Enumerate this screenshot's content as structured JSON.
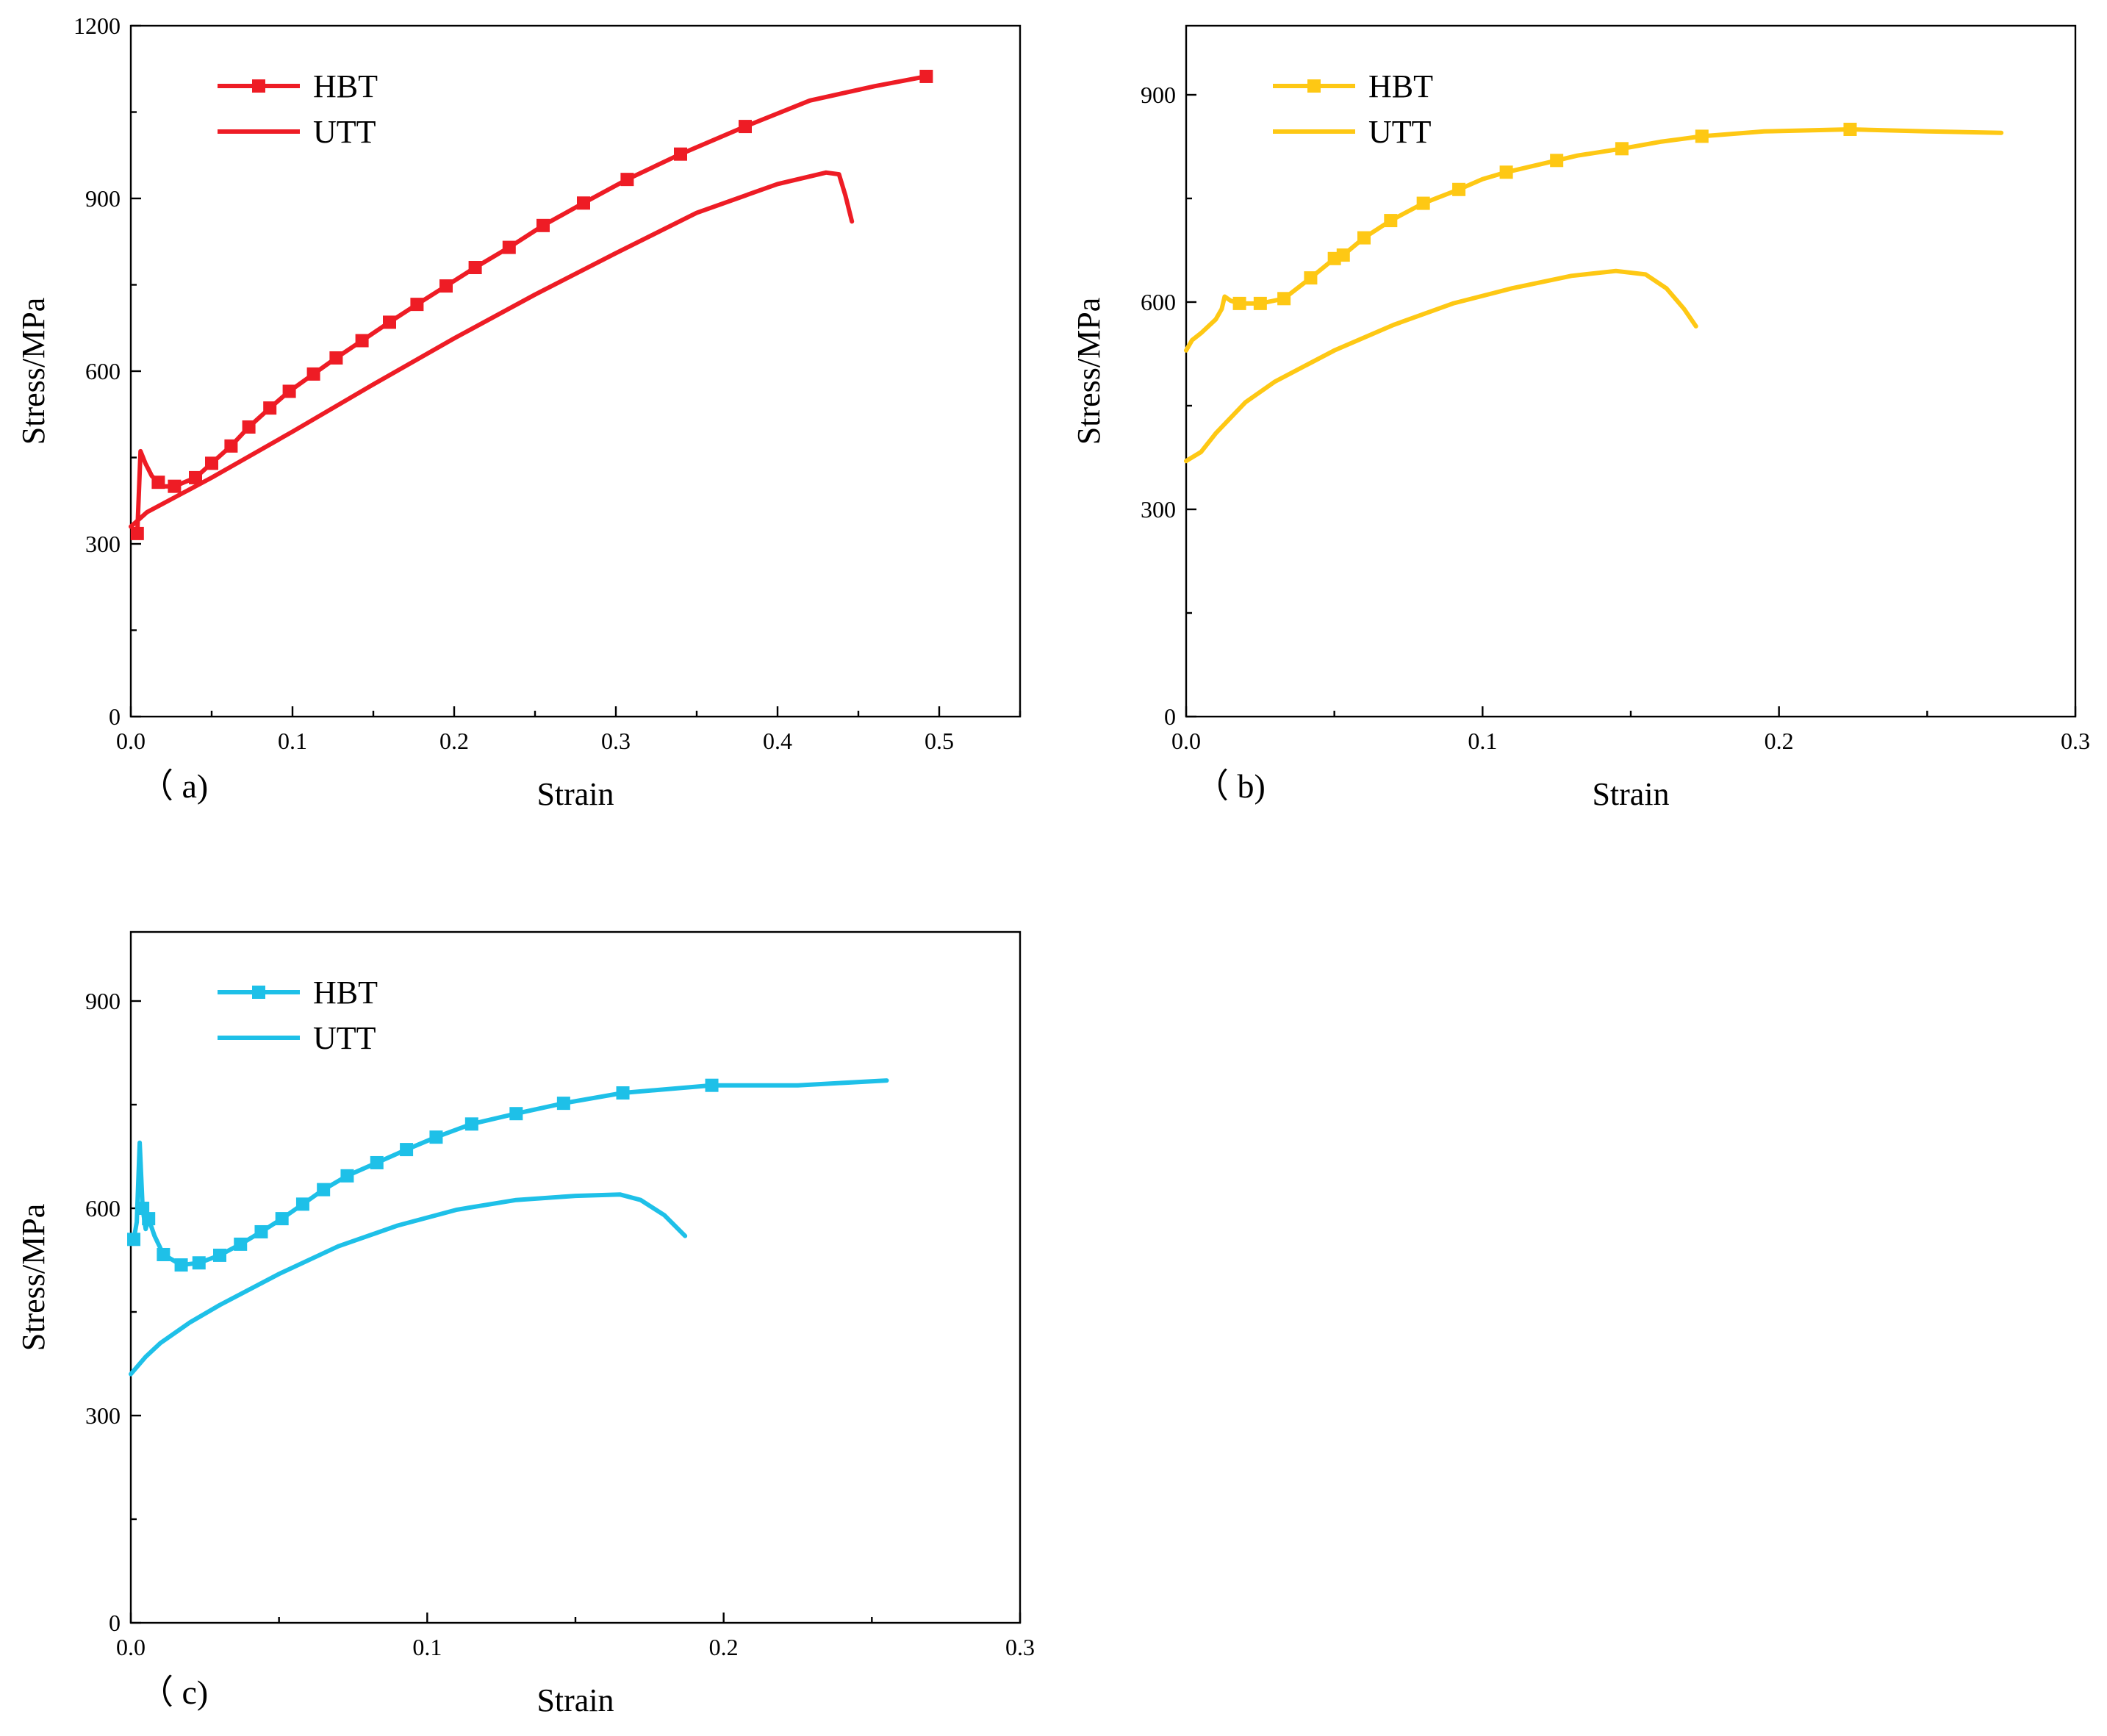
{
  "chart_data": [
    {
      "type": "line",
      "panel_label": "（ a)",
      "xlabel": "Strain",
      "ylabel": "Stress/MPa",
      "xlim": [
        0,
        0.55
      ],
      "ylim": [
        0,
        1200
      ],
      "xticks": [
        0.0,
        0.1,
        0.2,
        0.3,
        0.4,
        0.5
      ],
      "xtick_labels": [
        "0.0",
        "0.1",
        "0.2",
        "0.3",
        "0.4",
        "0.5"
      ],
      "yticks": [
        0,
        300,
        600,
        900,
        1200
      ],
      "ytick_labels": [
        "0",
        "300",
        "600",
        "900",
        "1200"
      ],
      "color": "#ee1c25",
      "legend_position": "top-left",
      "series": [
        {
          "name": "HBT",
          "marker": "square",
          "x": [
            0.004,
            0.006,
            0.009,
            0.013,
            0.017,
            0.02,
            0.027,
            0.04,
            0.05,
            0.062,
            0.073,
            0.086,
            0.098,
            0.113,
            0.127,
            0.143,
            0.16,
            0.177,
            0.195,
            0.213,
            0.234,
            0.255,
            0.28,
            0.307,
            0.34,
            0.38,
            0.42,
            0.46,
            0.492
          ],
          "y": [
            318,
            461,
            440,
            418,
            407,
            400,
            400,
            415,
            440,
            470,
            503,
            536,
            565,
            595,
            623,
            653,
            685,
            716,
            748,
            780,
            815,
            853,
            892,
            933,
            977,
            1025,
            1070,
            1095,
            1112
          ],
          "marker_x": [
            0.004,
            0.017,
            0.027,
            0.04,
            0.05,
            0.062,
            0.073,
            0.086,
            0.098,
            0.113,
            0.127,
            0.143,
            0.16,
            0.177,
            0.195,
            0.213,
            0.234,
            0.255,
            0.28,
            0.307,
            0.34,
            0.38,
            0.492
          ],
          "marker_y": [
            318,
            407,
            400,
            415,
            440,
            470,
            503,
            536,
            565,
            595,
            623,
            653,
            685,
            716,
            748,
            780,
            815,
            853,
            892,
            933,
            977,
            1025,
            1112
          ]
        },
        {
          "name": "UTT",
          "x": [
            0.0,
            0.002,
            0.01,
            0.03,
            0.05,
            0.1,
            0.15,
            0.2,
            0.25,
            0.3,
            0.35,
            0.4,
            0.43,
            0.438,
            0.442,
            0.446
          ],
          "y": [
            330,
            335,
            355,
            385,
            415,
            495,
            577,
            657,
            733,
            805,
            875,
            925,
            945,
            942,
            905,
            860
          ]
        }
      ]
    },
    {
      "type": "line",
      "panel_label": "（ b)",
      "xlabel": "Strain",
      "ylabel": "Stress/MPa",
      "xlim": [
        0,
        0.3
      ],
      "ylim": [
        0,
        1000
      ],
      "xticks": [
        0.0,
        0.1,
        0.2,
        0.3
      ],
      "xtick_labels": [
        "0.0",
        "0.1",
        "0.2",
        "0.3"
      ],
      "yticks": [
        0,
        300,
        600,
        900
      ],
      "ytick_labels": [
        "0",
        "300",
        "600",
        "900"
      ],
      "color": "#fec814",
      "legend_position": "top-left",
      "series": [
        {
          "name": "HBT",
          "marker": "square",
          "x": [
            0.0,
            0.002,
            0.005,
            0.01,
            0.012,
            0.013,
            0.015,
            0.018,
            0.025,
            0.033,
            0.042,
            0.05,
            0.053,
            0.06,
            0.069,
            0.08,
            0.092,
            0.1,
            0.108,
            0.125,
            0.132,
            0.147,
            0.16,
            0.174,
            0.18,
            0.195,
            0.224,
            0.25,
            0.275
          ],
          "y": [
            530,
            545,
            555,
            575,
            590,
            608,
            602,
            598,
            598,
            605,
            635,
            663,
            668,
            693,
            718,
            743,
            763,
            778,
            788,
            805,
            812,
            822,
            832,
            840,
            842,
            847,
            850,
            847,
            845
          ],
          "marker_x": [
            0.018,
            0.025,
            0.033,
            0.042,
            0.05,
            0.053,
            0.06,
            0.069,
            0.08,
            0.092,
            0.108,
            0.125,
            0.147,
            0.174,
            0.224
          ],
          "marker_y": [
            598,
            598,
            605,
            635,
            663,
            668,
            693,
            718,
            743,
            763,
            788,
            805,
            822,
            840,
            850
          ]
        },
        {
          "name": "UTT",
          "x": [
            0.0,
            0.005,
            0.01,
            0.02,
            0.03,
            0.05,
            0.07,
            0.09,
            0.11,
            0.13,
            0.145,
            0.155,
            0.162,
            0.168,
            0.172
          ],
          "y": [
            370,
            383,
            410,
            455,
            485,
            530,
            567,
            598,
            620,
            638,
            645,
            640,
            620,
            590,
            565
          ]
        }
      ]
    },
    {
      "type": "line",
      "panel_label": "（ c)",
      "xlabel": "Strain",
      "ylabel": "Stress/MPa",
      "xlim": [
        0,
        0.3
      ],
      "ylim": [
        0,
        1000
      ],
      "xticks": [
        0.0,
        0.1,
        0.2,
        0.3
      ],
      "xtick_labels": [
        "0.0",
        "0.1",
        "0.2",
        "0.3"
      ],
      "yticks": [
        0,
        300,
        600,
        900
      ],
      "ytick_labels": [
        "0",
        "300",
        "600",
        "900"
      ],
      "color": "#1ec0e8",
      "legend_position": "top-left",
      "series": [
        {
          "name": "HBT",
          "marker": "square",
          "x": [
            0.001,
            0.002,
            0.003,
            0.004,
            0.005,
            0.006,
            0.008,
            0.011,
            0.017,
            0.023,
            0.03,
            0.037,
            0.044,
            0.051,
            0.058,
            0.065,
            0.073,
            0.083,
            0.093,
            0.103,
            0.115,
            0.13,
            0.146,
            0.166,
            0.196,
            0.225,
            0.255
          ],
          "y": [
            555,
            580,
            695,
            600,
            570,
            585,
            560,
            533,
            518,
            521,
            532,
            548,
            566,
            585,
            606,
            627,
            647,
            666,
            685,
            703,
            722,
            737,
            752,
            767,
            778,
            778,
            785
          ],
          "marker_x": [
            0.001,
            0.004,
            0.006,
            0.011,
            0.017,
            0.023,
            0.03,
            0.037,
            0.044,
            0.051,
            0.058,
            0.065,
            0.073,
            0.083,
            0.093,
            0.103,
            0.115,
            0.13,
            0.146,
            0.166,
            0.196
          ],
          "marker_y": [
            555,
            600,
            585,
            533,
            518,
            521,
            532,
            548,
            566,
            585,
            606,
            627,
            647,
            666,
            685,
            703,
            722,
            737,
            752,
            767,
            778
          ]
        },
        {
          "name": "UTT",
          "x": [
            0.0,
            0.005,
            0.01,
            0.02,
            0.03,
            0.05,
            0.07,
            0.09,
            0.11,
            0.13,
            0.15,
            0.165,
            0.172,
            0.18,
            0.187
          ],
          "y": [
            360,
            385,
            405,
            435,
            460,
            505,
            545,
            575,
            598,
            612,
            618,
            620,
            612,
            590,
            560
          ]
        }
      ]
    }
  ]
}
